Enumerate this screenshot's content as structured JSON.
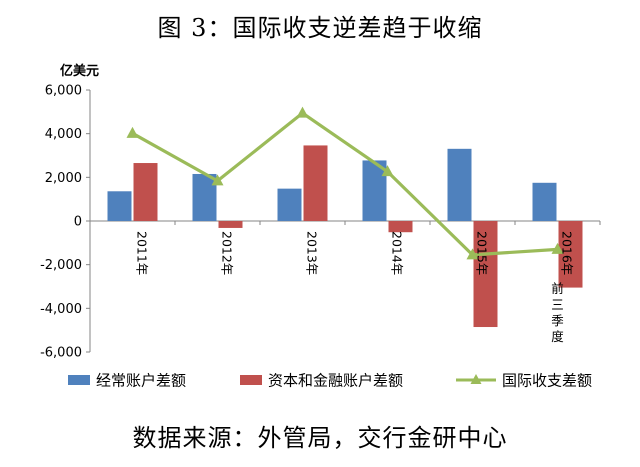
{
  "title": "图 3：国际收支逆差趋于收缩",
  "source": "数据来源：外管局，交行金研中心",
  "colors": {
    "current_account": "#4F81BD",
    "capital_financial": "#C0504D",
    "bop": "#9BBB59"
  },
  "chart_data": {
    "type": "bar",
    "ylabel": "亿美元",
    "ylim": [
      -6000,
      6000
    ],
    "yticks": [
      "-6,000",
      "-4,000",
      "-2,000",
      "0",
      "2,000",
      "4,000",
      "6,000"
    ],
    "ytick_values": [
      -6000,
      -4000,
      -2000,
      0,
      2000,
      4000,
      6000
    ],
    "categories": [
      "2011年",
      "2012年",
      "2013年",
      "2014年",
      "2015年",
      "2016年前三季度"
    ],
    "series": [
      {
        "name": "经常账户差额",
        "type": "bar",
        "values": [
          1361,
          2154,
          1482,
          2774,
          3306,
          1750
        ]
      },
      {
        "name": "资本和金融账户差额",
        "type": "bar",
        "values": [
          2655,
          -318,
          3461,
          -514,
          -4856,
          -3050
        ]
      },
      {
        "name": "国际收支差额",
        "type": "line",
        "values": [
          4016,
          1836,
          4943,
          2260,
          -1550,
          -1300
        ]
      }
    ],
    "legend_position": "bottom",
    "grid": false
  }
}
